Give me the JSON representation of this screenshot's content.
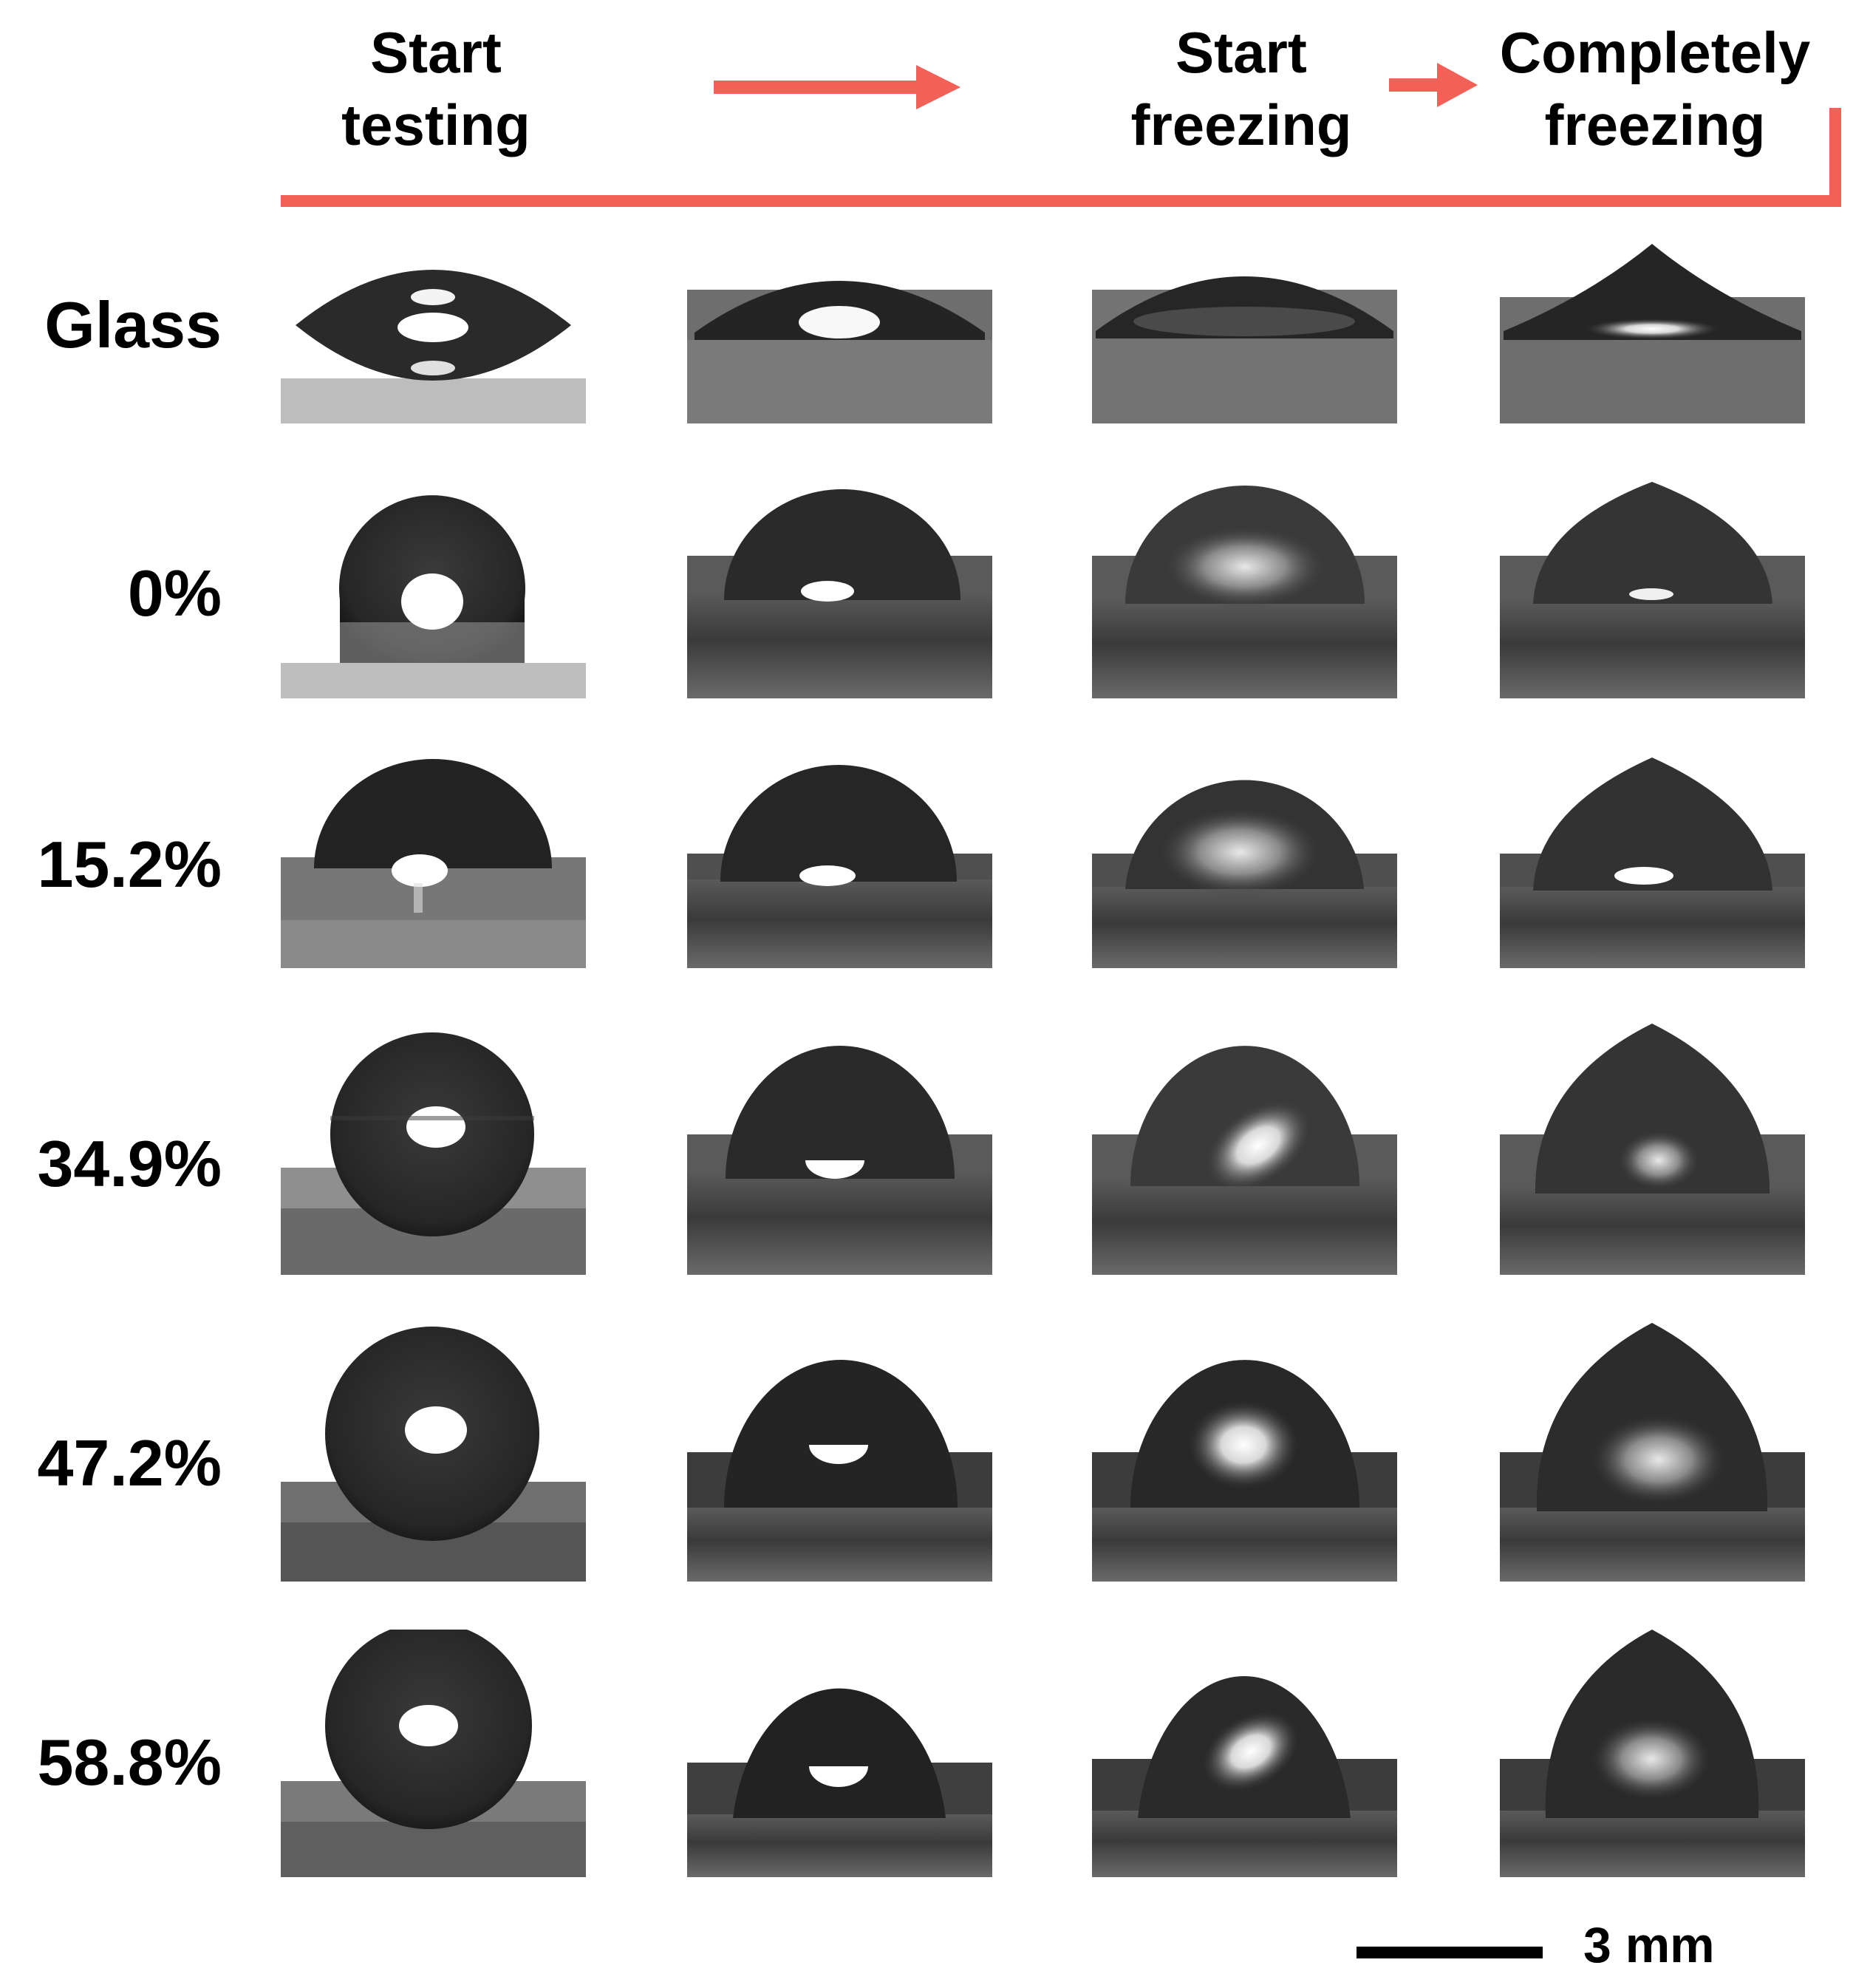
{
  "header": {
    "stage_labels": [
      {
        "line1": "Start",
        "line2": "testing"
      },
      {
        "line1": "Start",
        "line2": "freezing"
      },
      {
        "line1": "Completely",
        "line2": "freezing"
      }
    ],
    "accent_color": "#F26157"
  },
  "rows": [
    {
      "label": "Glass"
    },
    {
      "label": "0%"
    },
    {
      "label": "15.2%"
    },
    {
      "label": "34.9%"
    },
    {
      "label": "47.2%"
    },
    {
      "label": "58.8%"
    }
  ],
  "scale_bar": {
    "label": "3 mm"
  }
}
